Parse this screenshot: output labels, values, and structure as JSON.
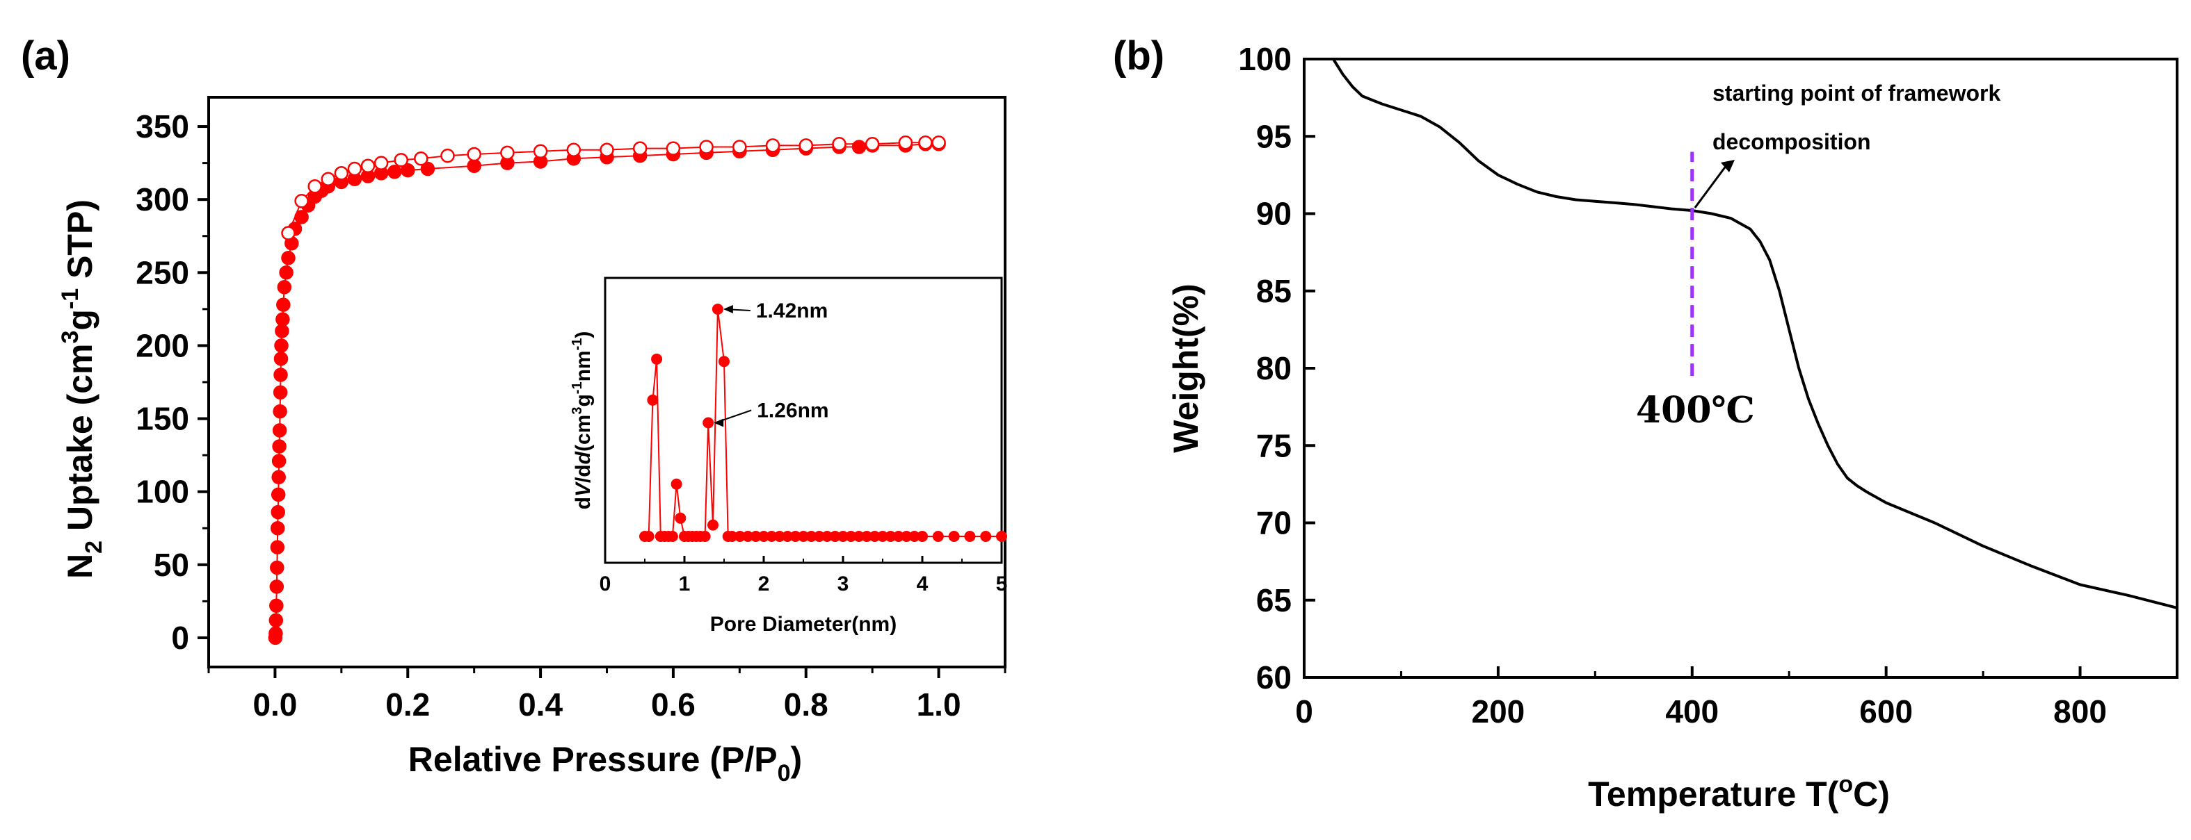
{
  "chart_data": [
    {
      "id": "a",
      "type": "scatter",
      "panel_label": "(a)",
      "xlabel": "Relative Pressure (P/P0)",
      "xlabel_main": "Relative Pressure (P/P",
      "xlabel_sub": "0",
      "xlabel_end": ")",
      "ylabel_parts": {
        "p1": "N",
        "sub": "2",
        "p2": " Uptake (cm",
        "sup1": "3",
        "p3": "g",
        "sup2": "-1",
        "p4": " STP)"
      },
      "xlim": [
        -0.1,
        1.1
      ],
      "ylim": [
        -20,
        370
      ],
      "xticks": [
        0.0,
        0.2,
        0.4,
        0.6,
        0.8,
        1.0
      ],
      "xtick_labels": [
        "0.0",
        "0.2",
        "0.4",
        "0.6",
        "0.8",
        "1.0"
      ],
      "yticks": [
        0,
        50,
        100,
        150,
        200,
        250,
        300,
        350
      ],
      "ytick_labels": [
        "0",
        "50",
        "100",
        "150",
        "200",
        "250",
        "300",
        "350"
      ],
      "color": "#ff0000",
      "series": [
        {
          "name": "adsorption",
          "marker": "filled",
          "x": [
            0.0005,
            0.001,
            0.0015,
            0.002,
            0.0025,
            0.003,
            0.0035,
            0.004,
            0.0045,
            0.005,
            0.0055,
            0.006,
            0.0065,
            0.007,
            0.0075,
            0.008,
            0.0085,
            0.009,
            0.0095,
            0.0105,
            0.0115,
            0.0125,
            0.014,
            0.017,
            0.02,
            0.025,
            0.03,
            0.04,
            0.05,
            0.06,
            0.07,
            0.08,
            0.1,
            0.12,
            0.14,
            0.16,
            0.18,
            0.2,
            0.23,
            0.3,
            0.35,
            0.4,
            0.45,
            0.5,
            0.55,
            0.6,
            0.65,
            0.7,
            0.75,
            0.8,
            0.85,
            0.88,
            0.9,
            0.95,
            0.98,
            1.0
          ],
          "y": [
            0,
            3,
            12,
            22,
            35,
            48,
            62,
            75,
            86,
            98,
            110,
            121,
            131,
            142,
            155,
            168,
            180,
            191,
            200,
            210,
            218,
            228,
            240,
            250,
            260,
            270,
            280,
            288,
            296,
            302,
            306,
            309,
            312,
            314,
            316,
            318,
            319,
            320,
            321,
            323,
            325,
            326,
            328,
            329,
            330,
            331,
            332,
            333,
            334,
            335,
            336,
            336,
            337,
            337,
            338,
            338
          ]
        },
        {
          "name": "desorption",
          "marker": "open",
          "x": [
            1.0,
            0.98,
            0.95,
            0.9,
            0.85,
            0.8,
            0.75,
            0.7,
            0.65,
            0.6,
            0.55,
            0.5,
            0.45,
            0.4,
            0.35,
            0.3,
            0.26,
            0.22,
            0.19,
            0.16,
            0.14,
            0.12,
            0.1,
            0.08,
            0.06,
            0.04,
            0.02
          ],
          "y": [
            339,
            339,
            339,
            338,
            338,
            337,
            337,
            336,
            336,
            335,
            335,
            334,
            334,
            333,
            332,
            331,
            330,
            328,
            327,
            325,
            323,
            321,
            318,
            314,
            309,
            299,
            277
          ]
        }
      ],
      "inset": {
        "type": "line",
        "xlabel": "Pore Diameter(nm)",
        "ylabel_parts": {
          "p1": "d",
          "v": "V",
          "p2": "/d",
          "d": "d",
          "p3": "(cm",
          "sup1": "3",
          "p4": "g",
          "sup2": "-1",
          "p5": "nm",
          "sup3": "-1",
          "p6": ")"
        },
        "xlim": [
          0,
          5
        ],
        "ylim": [
          -0.1,
          1.15
        ],
        "xticks": [
          0,
          1,
          2,
          3,
          4,
          5
        ],
        "xtick_labels": [
          "0",
          "1",
          "2",
          "3",
          "4",
          "5"
        ],
        "x": [
          0.5,
          0.55,
          0.6,
          0.65,
          0.7,
          0.75,
          0.8,
          0.85,
          0.9,
          0.95,
          1.0,
          1.05,
          1.1,
          1.15,
          1.2,
          1.26,
          1.3,
          1.36,
          1.42,
          1.5,
          1.55,
          1.6,
          1.7,
          1.8,
          1.9,
          2.0,
          2.1,
          2.2,
          2.3,
          2.4,
          2.5,
          2.6,
          2.7,
          2.8,
          2.9,
          3.0,
          3.1,
          3.2,
          3.3,
          3.4,
          3.5,
          3.6,
          3.7,
          3.8,
          3.9,
          4.0,
          4.2,
          4.4,
          4.6,
          4.8,
          5.0
        ],
        "y": [
          0.0,
          0.0,
          0.6,
          0.78,
          0.0,
          0.0,
          0.0,
          0.0,
          0.23,
          0.08,
          0.0,
          0.0,
          0.0,
          0.0,
          0.0,
          0.0,
          0.5,
          0.05,
          1.0,
          0.77,
          0.0,
          0.0,
          0.0,
          0.0,
          0.0,
          0.0,
          0.0,
          0.0,
          0.0,
          0.0,
          0.0,
          0.0,
          0.0,
          0.0,
          0.0,
          0.0,
          0.0,
          0.0,
          0.0,
          0.0,
          0.0,
          0.0,
          0.0,
          0.0,
          0.0,
          0.0,
          0.0,
          0.0,
          0.0,
          0.0,
          0.0
        ],
        "annotations": [
          {
            "text": "1.42nm",
            "x": 1.42,
            "y": 1.0
          },
          {
            "text": "1.26nm",
            "x": 1.3,
            "y": 0.5
          }
        ]
      }
    },
    {
      "id": "b",
      "type": "line",
      "panel_label": "(b)",
      "xlabel_main": "Temperature T(",
      "xlabel_sup": "o",
      "xlabel_end": "C)",
      "ylabel": "Weight(%)",
      "xlim": [
        0,
        900
      ],
      "ylim": [
        60,
        100
      ],
      "xticks": [
        0,
        200,
        400,
        600,
        800
      ],
      "xtick_labels": [
        "0",
        "200",
        "400",
        "600",
        "800"
      ],
      "yticks": [
        60,
        65,
        70,
        75,
        80,
        85,
        90,
        95,
        100
      ],
      "ytick_labels": [
        "60",
        "65",
        "70",
        "75",
        "80",
        "85",
        "90",
        "95",
        "100"
      ],
      "color": "#000000",
      "x": [
        30,
        40,
        50,
        60,
        80,
        100,
        120,
        140,
        160,
        180,
        200,
        220,
        240,
        260,
        280,
        300,
        320,
        340,
        360,
        380,
        400,
        420,
        440,
        460,
        470,
        480,
        490,
        500,
        510,
        520,
        530,
        540,
        550,
        560,
        570,
        580,
        600,
        650,
        700,
        750,
        800,
        850,
        900
      ],
      "y": [
        100,
        99.0,
        98.2,
        97.6,
        97.1,
        96.7,
        96.3,
        95.6,
        94.6,
        93.4,
        92.5,
        91.9,
        91.4,
        91.1,
        90.9,
        90.8,
        90.7,
        90.6,
        90.45,
        90.3,
        90.2,
        90.0,
        89.7,
        89.0,
        88.2,
        87.0,
        85.0,
        82.5,
        80.0,
        78.0,
        76.4,
        75.0,
        73.8,
        72.9,
        72.4,
        72.0,
        71.3,
        70.0,
        68.5,
        67.2,
        66.0,
        65.3,
        64.5
      ],
      "marker_line": {
        "x": 400,
        "y_from": 79.5,
        "y_to": 94,
        "color": "#9b30ff"
      },
      "annotation_lines": [
        "starting point of framework",
        "decomposition"
      ],
      "temperature_label": "400℃"
    }
  ]
}
